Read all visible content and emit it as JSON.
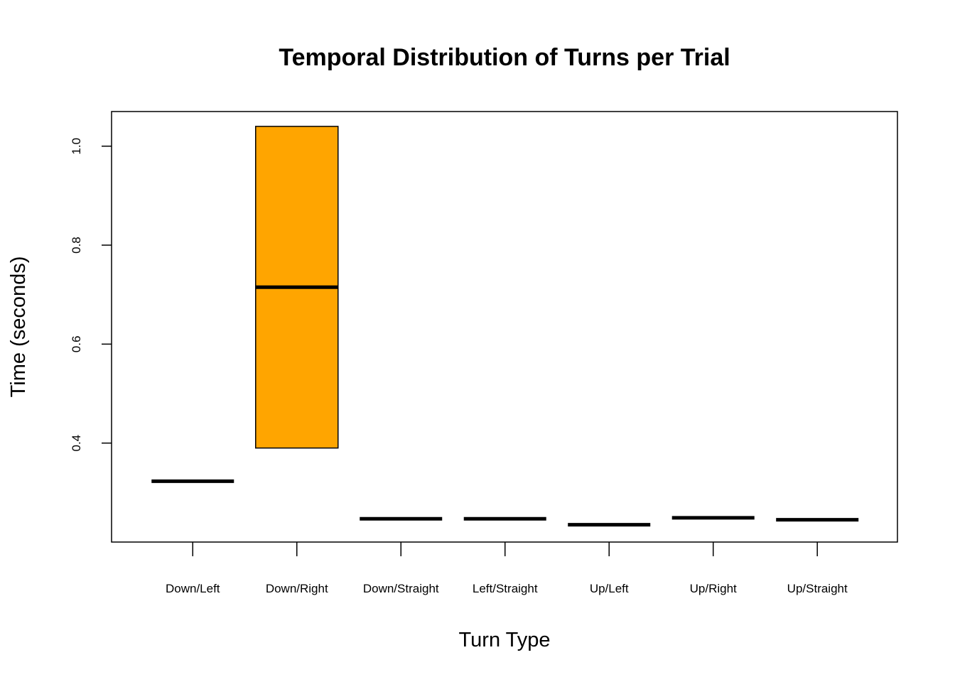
{
  "chart_data": {
    "type": "boxplot",
    "title": "Temporal Distribution of Turns per Trial",
    "xlabel": "Turn Type",
    "ylabel": "Time (seconds)",
    "ylim": [
      0.2,
      1.07
    ],
    "yticks": [
      "0.4",
      "0.6",
      "0.8",
      "1.0"
    ],
    "grid": false,
    "categories": [
      "Down/Left",
      "Down/Right",
      "Down/Straight",
      "Left/Straight",
      "Up/Left",
      "Up/Right",
      "Up/Straight"
    ],
    "boxes": [
      {
        "q1": 0.323,
        "median": 0.323,
        "q3": 0.323,
        "fill": "#ffffff"
      },
      {
        "q1": 0.39,
        "median": 0.715,
        "q3": 1.04,
        "fill": "#FFA500"
      },
      {
        "q1": 0.247,
        "median": 0.247,
        "q3": 0.247,
        "fill": "#ffffff"
      },
      {
        "q1": 0.247,
        "median": 0.247,
        "q3": 0.247,
        "fill": "#ffffff"
      },
      {
        "q1": 0.235,
        "median": 0.235,
        "q3": 0.235,
        "fill": "#ffffff"
      },
      {
        "q1": 0.249,
        "median": 0.249,
        "q3": 0.249,
        "fill": "#ffffff"
      },
      {
        "q1": 0.245,
        "median": 0.245,
        "q3": 0.245,
        "fill": "#ffffff"
      }
    ]
  }
}
